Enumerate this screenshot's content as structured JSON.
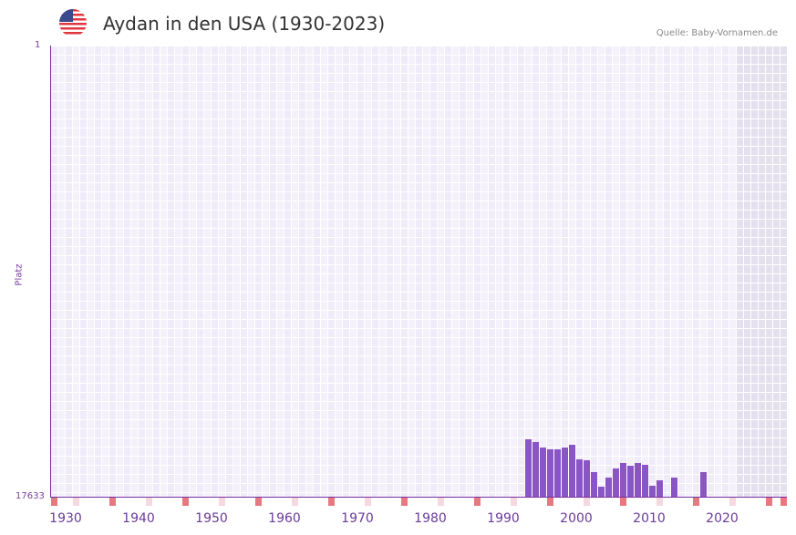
{
  "header": {
    "title": "Aydan in den USA (1930-2023)",
    "flag_icon": "us-flag-icon",
    "source": "Quelle: Baby-Vornamen.de"
  },
  "colors": {
    "bar": "#8a55c4",
    "axis": "#7a2fa0",
    "grid_bg_a": "#efebf9",
    "grid_bg_b": "#f4f1fb",
    "future_shade": "#e4e0ee",
    "decade_marker": "#e87880",
    "half_decade_marker": "#f5d8e0"
  },
  "chart_data": {
    "type": "bar",
    "title": "Aydan in den USA (1930-2023)",
    "xlabel": "",
    "ylabel": "Platz",
    "y_inverted": true,
    "ylim": [
      1,
      17633
    ],
    "xlim": [
      1930,
      2030
    ],
    "grid": true,
    "x_ticks": [
      "1930",
      "1940",
      "1950",
      "1960",
      "1970",
      "1980",
      "1990",
      "2000",
      "2010",
      "2020"
    ],
    "y_ticks": [
      "1",
      "17633"
    ],
    "categories": [
      1995,
      1996,
      1997,
      1998,
      1999,
      2000,
      2001,
      2002,
      2003,
      2004,
      2005,
      2006,
      2007,
      2008,
      2009,
      2010,
      2011,
      2012,
      2013,
      2015,
      2019
    ],
    "values": [
      15389,
      15496,
      15710,
      15781,
      15781,
      15710,
      15603,
      16173,
      16209,
      16672,
      17241,
      16885,
      16529,
      16316,
      16423,
      16316,
      16387,
      17205,
      16992,
      16885,
      16672
    ]
  }
}
